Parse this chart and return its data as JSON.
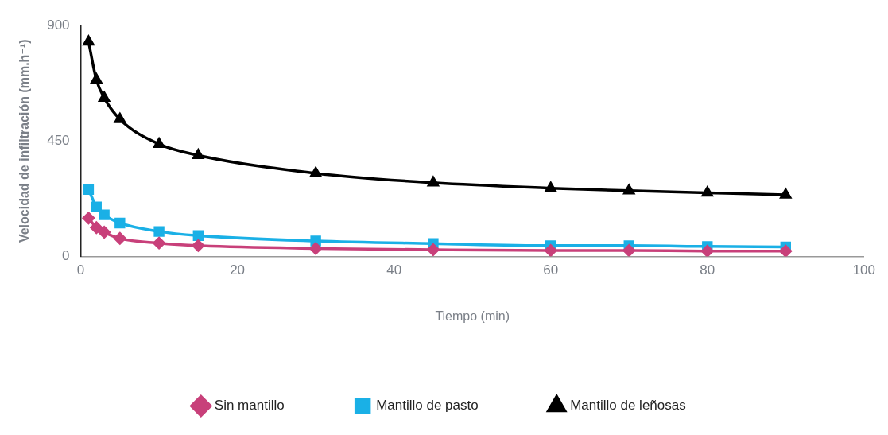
{
  "chart_data": {
    "type": "line",
    "xlabel": "Tiempo (min)",
    "ylabel": "Velocidad de infiltración (mm.h⁻¹)",
    "x": [
      1,
      2,
      3,
      5,
      10,
      15,
      30,
      45,
      60,
      70,
      80,
      90
    ],
    "series": [
      {
        "name": "Sin mantillo",
        "color": "#c8407a",
        "marker": "diamond",
        "values": [
          149,
          112,
          94,
          70,
          52,
          42,
          31,
          26,
          23,
          23,
          21,
          21
        ]
      },
      {
        "name": "Mantillo de pasto",
        "color": "#1ab0e6",
        "marker": "square",
        "values": [
          261,
          193,
          162,
          130,
          97,
          81,
          60,
          50,
          42,
          42,
          39,
          37
        ]
      },
      {
        "name": "Mantillo de leñosas",
        "color": "#000000",
        "marker": "triangle",
        "values": [
          837,
          689,
          618,
          535,
          438,
          394,
          324,
          287,
          266,
          256,
          248,
          240
        ]
      }
    ],
    "xlim": [
      0,
      100
    ],
    "xticks": [
      0,
      20,
      40,
      60,
      80,
      100
    ],
    "ylim": [
      0,
      900
    ],
    "yticks": [
      0,
      450,
      900
    ],
    "grid": false,
    "legend": "bottom",
    "line_style": "solid"
  }
}
